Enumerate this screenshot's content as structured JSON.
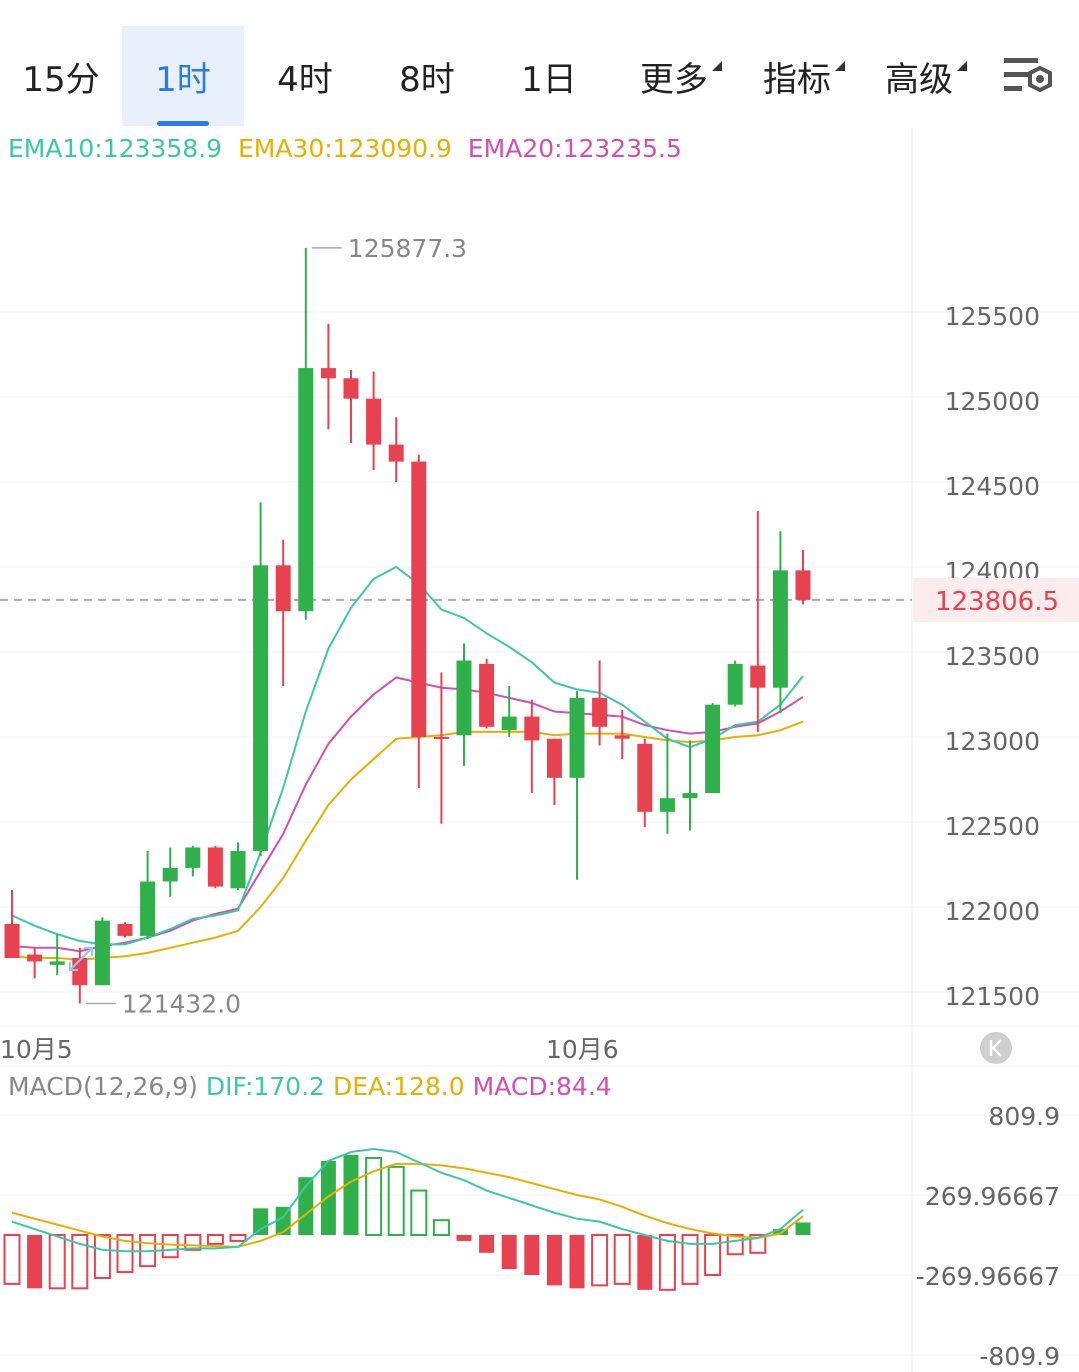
{
  "tabs": [
    {
      "label": "15分",
      "active": false,
      "has_caret": false
    },
    {
      "label": "1时",
      "active": true,
      "has_caret": false
    },
    {
      "label": "4时",
      "active": false,
      "has_caret": false
    },
    {
      "label": "8时",
      "active": false,
      "has_caret": false
    },
    {
      "label": "1日",
      "active": false,
      "has_caret": false
    },
    {
      "label": "更多",
      "active": false,
      "has_caret": true
    },
    {
      "label": "指标",
      "active": false,
      "has_caret": true
    },
    {
      "label": "高级",
      "active": false,
      "has_caret": true
    }
  ],
  "settings_icon": "chart-settings-icon",
  "indicators": {
    "ema10": "EMA10:123358.9",
    "ema30": "EMA30:123090.9",
    "ema20": "EMA20:123235.5"
  },
  "colors": {
    "up": "#2fb04b",
    "down": "#e8414f",
    "ema10": "#3cc8a8",
    "ema30": "#e6b000",
    "ema20": "#d24fb4",
    "accent": "#2c7be5",
    "price_tag_bg": "#fdeced",
    "price_tag_text": "#e8414f"
  },
  "price_axis": {
    "ticks": [
      "125500",
      "125000",
      "124500",
      "124000",
      "123500",
      "123000",
      "122500",
      "122000",
      "121500"
    ]
  },
  "current_price": "123806.5",
  "high_marker": "125877.3",
  "low_marker": "121432.0",
  "date_labels": [
    "10月5",
    "10月6"
  ],
  "macd_header": {
    "params": "MACD(12,26,9)",
    "dif": "DIF:170.2",
    "dea": "DEA:128.0",
    "macd": "MACD:84.4"
  },
  "macd_axis": {
    "ticks": [
      "809.9",
      "269.96667",
      "-269.96667",
      "-809.9"
    ]
  },
  "chart_data": {
    "type": "candlestick",
    "interval": "1时",
    "price_range": [
      121200,
      126400
    ],
    "macd_range": [
      -809.9,
      809.9
    ],
    "candles": [
      {
        "o": 121900,
        "h": 122100,
        "l": 121700,
        "c": 121700
      },
      {
        "o": 121720,
        "h": 121760,
        "l": 121580,
        "c": 121680
      },
      {
        "o": 121660,
        "h": 121840,
        "l": 121600,
        "c": 121680
      },
      {
        "o": 121700,
        "h": 121760,
        "l": 121432,
        "c": 121540
      },
      {
        "o": 121540,
        "h": 121940,
        "l": 121540,
        "c": 121920
      },
      {
        "o": 121900,
        "h": 121910,
        "l": 121820,
        "c": 121830
      },
      {
        "o": 121830,
        "h": 122330,
        "l": 121810,
        "c": 122150
      },
      {
        "o": 122150,
        "h": 122350,
        "l": 122060,
        "c": 122230
      },
      {
        "o": 122230,
        "h": 122360,
        "l": 122180,
        "c": 122350
      },
      {
        "o": 122350,
        "h": 122360,
        "l": 122110,
        "c": 122120
      },
      {
        "o": 122110,
        "h": 122380,
        "l": 122100,
        "c": 122330
      },
      {
        "o": 122330,
        "h": 124380,
        "l": 122300,
        "c": 124010
      },
      {
        "o": 124010,
        "h": 124160,
        "l": 123300,
        "c": 123740
      },
      {
        "o": 123740,
        "h": 125877.3,
        "l": 123690,
        "c": 125170
      },
      {
        "o": 125170,
        "h": 125430,
        "l": 124810,
        "c": 125110
      },
      {
        "o": 125110,
        "h": 125160,
        "l": 124730,
        "c": 124990
      },
      {
        "o": 124990,
        "h": 125150,
        "l": 124570,
        "c": 124720
      },
      {
        "o": 124720,
        "h": 124880,
        "l": 124500,
        "c": 124620
      },
      {
        "o": 124620,
        "h": 124660,
        "l": 122700,
        "c": 123000
      },
      {
        "o": 123000,
        "h": 123380,
        "l": 122490,
        "c": 122990
      },
      {
        "o": 123010,
        "h": 123550,
        "l": 122830,
        "c": 123450
      },
      {
        "o": 123430,
        "h": 123460,
        "l": 123050,
        "c": 123060
      },
      {
        "o": 123040,
        "h": 123300,
        "l": 123000,
        "c": 123120
      },
      {
        "o": 123120,
        "h": 123220,
        "l": 122670,
        "c": 122980
      },
      {
        "o": 122990,
        "h": 122990,
        "l": 122600,
        "c": 122760
      },
      {
        "o": 122760,
        "h": 123270,
        "l": 122160,
        "c": 123230
      },
      {
        "o": 123230,
        "h": 123450,
        "l": 122950,
        "c": 123060
      },
      {
        "o": 123010,
        "h": 123160,
        "l": 122870,
        "c": 122990
      },
      {
        "o": 122960,
        "h": 122990,
        "l": 122470,
        "c": 122560
      },
      {
        "o": 122560,
        "h": 123020,
        "l": 122430,
        "c": 122640
      },
      {
        "o": 122640,
        "h": 122980,
        "l": 122450,
        "c": 122670
      },
      {
        "o": 122670,
        "h": 123200,
        "l": 122670,
        "c": 123190
      },
      {
        "o": 123190,
        "h": 123450,
        "l": 123180,
        "c": 123430
      },
      {
        "o": 123420,
        "h": 124330,
        "l": 123030,
        "c": 123290
      },
      {
        "o": 123290,
        "h": 124210,
        "l": 123140,
        "c": 123980
      },
      {
        "o": 123980,
        "h": 124100,
        "l": 123780,
        "c": 123806.5
      }
    ],
    "ema10": [
      121950,
      121890,
      121840,
      121800,
      121780,
      121780,
      121820,
      121870,
      121930,
      121950,
      121980,
      122320,
      122700,
      123150,
      123520,
      123760,
      123930,
      124000,
      123900,
      123750,
      123700,
      123610,
      123530,
      123440,
      123320,
      123280,
      123260,
      123190,
      123090,
      122990,
      122940,
      122990,
      123070,
      123090,
      123190,
      123358.9
    ],
    "ema20": [
      121770,
      121760,
      121760,
      121740,
      121770,
      121790,
      121820,
      121860,
      121920,
      121960,
      121990,
      122210,
      122430,
      122720,
      122960,
      123120,
      123250,
      123350,
      123320,
      123290,
      123280,
      123260,
      123230,
      123200,
      123150,
      123140,
      123130,
      123120,
      123070,
      123040,
      123020,
      123030,
      123060,
      123080,
      123150,
      123235.5
    ],
    "ema30": [
      121710,
      121700,
      121700,
      121690,
      121700,
      121710,
      121730,
      121760,
      121790,
      121820,
      121860,
      122000,
      122170,
      122390,
      122600,
      122750,
      122870,
      122990,
      123000,
      123010,
      123030,
      123030,
      123030,
      123030,
      123010,
      123020,
      123020,
      123020,
      123000,
      122980,
      122970,
      122980,
      123000,
      123010,
      123040,
      123090.9
    ],
    "dif": [
      90,
      40,
      -10,
      -60,
      -100,
      -110,
      -110,
      -100,
      -90,
      -90,
      -80,
      40,
      120,
      330,
      500,
      560,
      580,
      560,
      490,
      420,
      370,
      300,
      250,
      200,
      150,
      110,
      90,
      40,
      0,
      -40,
      -60,
      -60,
      -40,
      -20,
      40,
      170.2
    ],
    "dea": [
      150,
      110,
      70,
      30,
      -10,
      -40,
      -55,
      -65,
      -70,
      -75,
      -80,
      -40,
      20,
      140,
      260,
      360,
      430,
      480,
      480,
      470,
      450,
      420,
      390,
      350,
      310,
      270,
      240,
      190,
      130,
      80,
      40,
      10,
      -10,
      -20,
      10,
      128.0
    ],
    "macd": [
      -330,
      -360,
      -360,
      -360,
      -290,
      -250,
      -210,
      -150,
      -100,
      -60,
      -40,
      180,
      190,
      390,
      500,
      540,
      520,
      460,
      300,
      100,
      -40,
      -120,
      -230,
      -270,
      -340,
      -360,
      -340,
      -330,
      -370,
      -370,
      -330,
      -270,
      -130,
      -120,
      40,
      84.4
    ]
  }
}
